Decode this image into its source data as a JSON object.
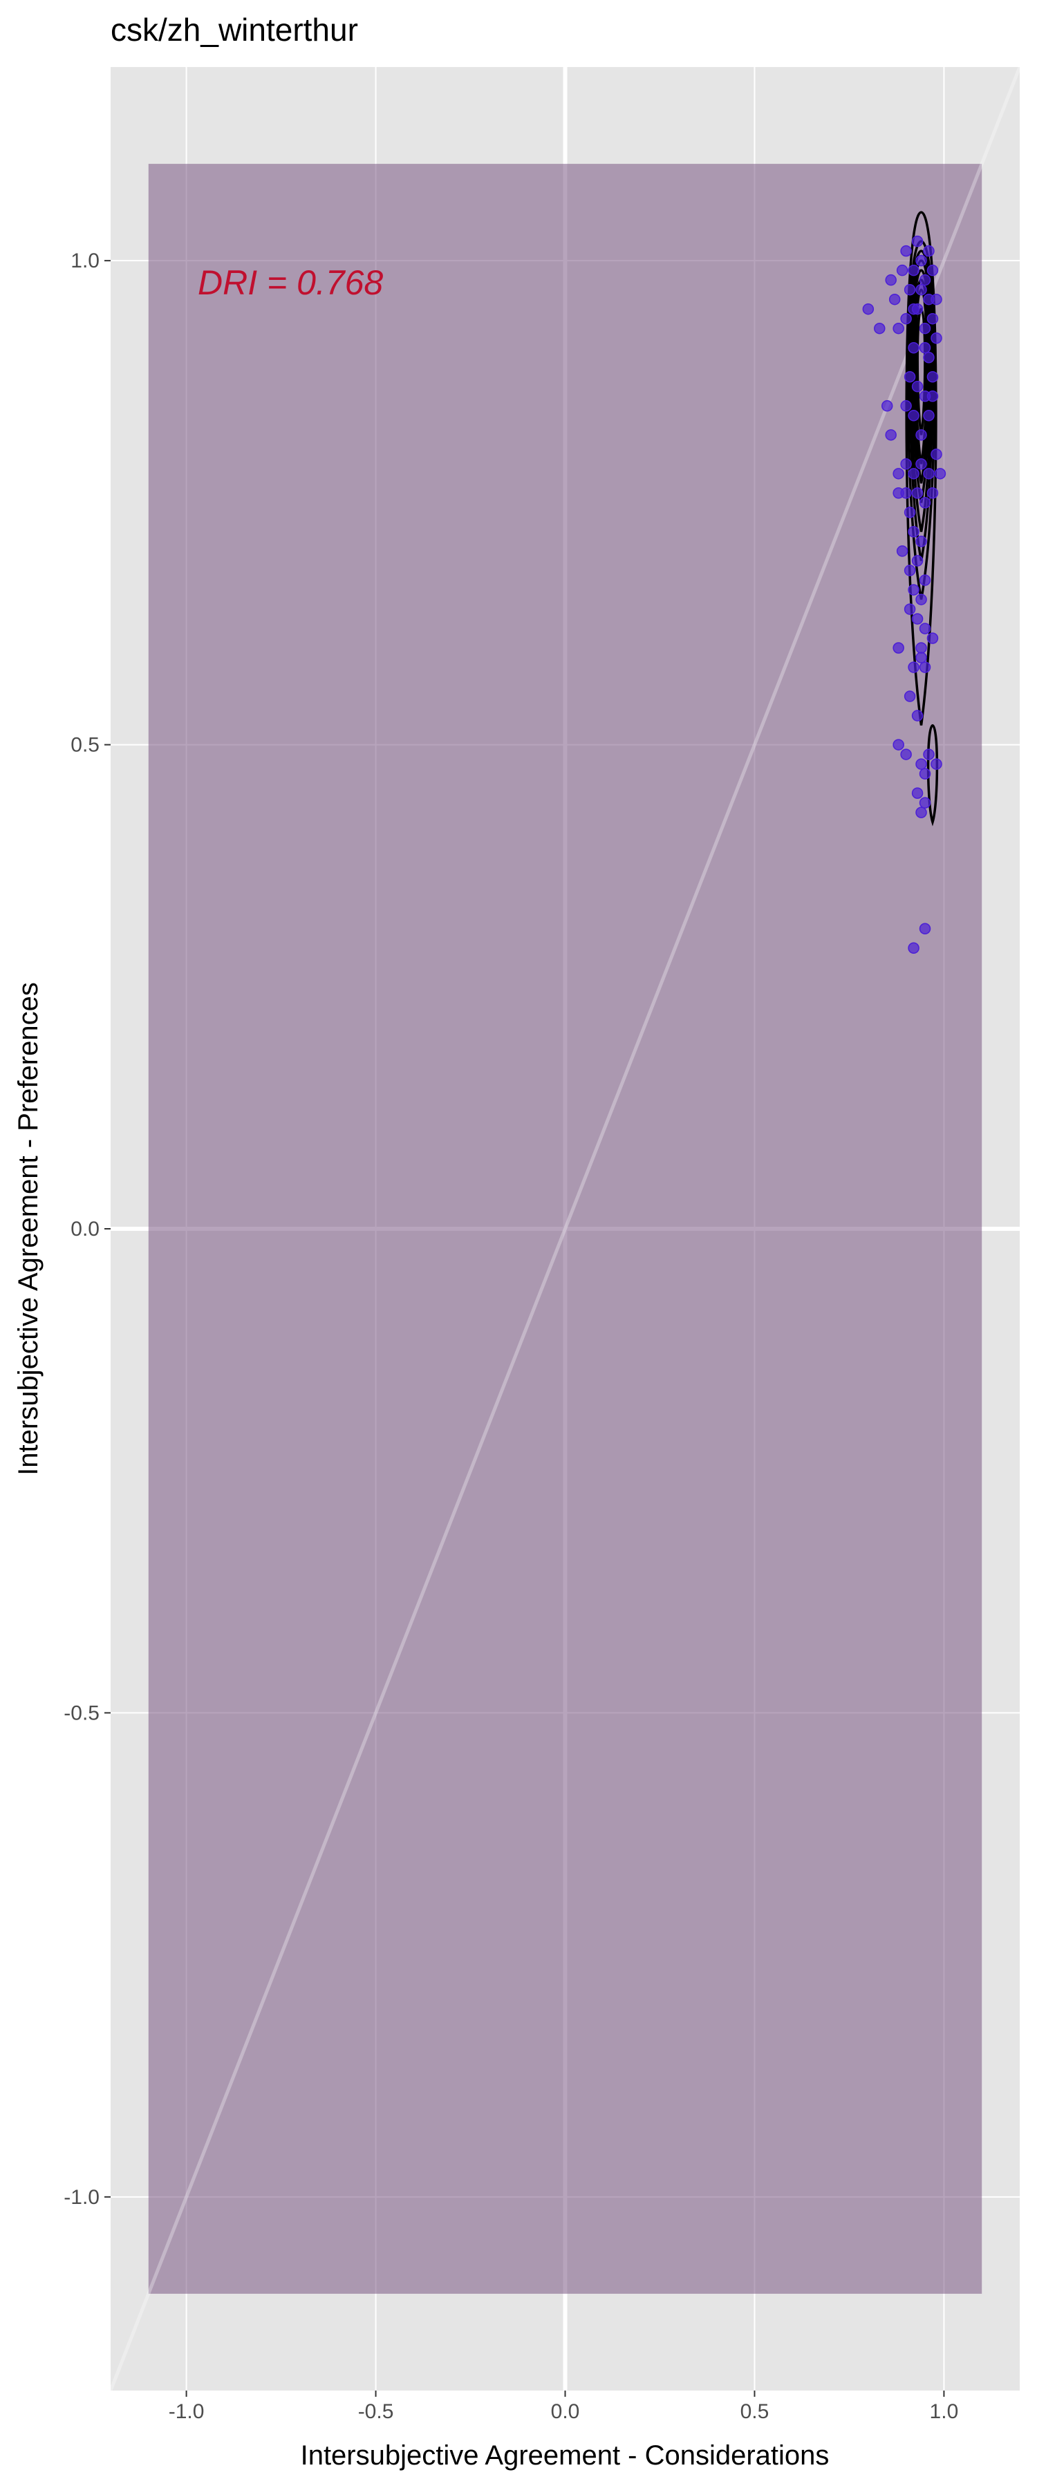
{
  "chart_data": {
    "type": "scatter",
    "title": "csk/zh_winterthur",
    "xlabel": "Intersubjective Agreement - Considerations",
    "ylabel": "Intersubjective Agreement - Preferences",
    "xlim": [
      -1.2,
      1.2
    ],
    "ylim": [
      -1.2,
      1.2
    ],
    "x_ticks": [
      -1.0,
      -0.5,
      0.0,
      0.5,
      1.0
    ],
    "x_tick_labels": [
      "-1.0",
      "-0.5",
      "0.0",
      "0.5",
      "1.0"
    ],
    "y_ticks": [
      -1.0,
      -0.5,
      0.0,
      0.5,
      1.0
    ],
    "y_tick_labels": [
      "-1.0",
      "-0.5",
      "0.0",
      "0.5",
      "1.0"
    ],
    "grid": true,
    "region": {
      "x": [
        -1.1,
        1.1
      ],
      "y": [
        -1.1,
        1.1
      ],
      "color": "#7b5a85"
    },
    "diagonal": {
      "from": [
        -1.2,
        -1.2
      ],
      "to": [
        1.2,
        1.2
      ]
    },
    "annotation": {
      "text": "DRI = 0.768",
      "x": -0.97,
      "y": 0.965,
      "color": "#c0102f"
    },
    "point_color": "#4b1fd6",
    "points": [
      [
        0.8,
        0.95
      ],
      [
        0.83,
        0.93
      ],
      [
        0.86,
        0.98
      ],
      [
        0.87,
        0.96
      ],
      [
        0.89,
        0.99
      ],
      [
        0.9,
        1.01
      ],
      [
        0.91,
        0.97
      ],
      [
        0.92,
        0.99
      ],
      [
        0.93,
        1.02
      ],
      [
        0.94,
        1.0
      ],
      [
        0.95,
        0.98
      ],
      [
        0.96,
        1.01
      ],
      [
        0.97,
        0.99
      ],
      [
        0.98,
        0.96
      ],
      [
        0.88,
        0.93
      ],
      [
        0.9,
        0.94
      ],
      [
        0.92,
        0.91
      ],
      [
        0.93,
        0.95
      ],
      [
        0.95,
        0.93
      ],
      [
        0.96,
        0.9
      ],
      [
        0.98,
        0.92
      ],
      [
        0.91,
        0.88
      ],
      [
        0.93,
        0.87
      ],
      [
        0.95,
        0.86
      ],
      [
        0.97,
        0.88
      ],
      [
        0.9,
        0.85
      ],
      [
        0.92,
        0.84
      ],
      [
        0.94,
        0.82
      ],
      [
        0.96,
        0.84
      ],
      [
        0.98,
        0.8
      ],
      [
        0.85,
        0.85
      ],
      [
        0.86,
        0.82
      ],
      [
        0.88,
        0.78
      ],
      [
        0.9,
        0.79
      ],
      [
        0.92,
        0.78
      ],
      [
        0.94,
        0.79
      ],
      [
        0.96,
        0.78
      ],
      [
        0.99,
        0.78
      ],
      [
        0.88,
        0.76
      ],
      [
        0.9,
        0.76
      ],
      [
        0.91,
        0.74
      ],
      [
        0.93,
        0.76
      ],
      [
        0.95,
        0.75
      ],
      [
        0.97,
        0.76
      ],
      [
        0.92,
        0.72
      ],
      [
        0.94,
        0.71
      ],
      [
        0.89,
        0.7
      ],
      [
        0.91,
        0.68
      ],
      [
        0.93,
        0.69
      ],
      [
        0.95,
        0.67
      ],
      [
        0.92,
        0.66
      ],
      [
        0.94,
        0.65
      ],
      [
        0.91,
        0.64
      ],
      [
        0.93,
        0.63
      ],
      [
        0.95,
        0.62
      ],
      [
        0.97,
        0.61
      ],
      [
        0.88,
        0.6
      ],
      [
        0.94,
        0.6
      ],
      [
        0.95,
        0.58
      ],
      [
        0.92,
        0.58
      ],
      [
        0.94,
        0.59
      ],
      [
        0.91,
        0.55
      ],
      [
        0.93,
        0.53
      ],
      [
        0.88,
        0.5
      ],
      [
        0.9,
        0.49
      ],
      [
        0.94,
        0.48
      ],
      [
        0.96,
        0.49
      ],
      [
        0.98,
        0.48
      ],
      [
        0.95,
        0.47
      ],
      [
        0.93,
        0.45
      ],
      [
        0.94,
        0.43
      ],
      [
        0.95,
        0.44
      ],
      [
        0.95,
        0.31
      ],
      [
        0.92,
        0.29
      ],
      [
        0.97,
        0.94
      ],
      [
        0.96,
        0.96
      ],
      [
        0.94,
        0.97
      ],
      [
        0.92,
        0.95
      ],
      [
        0.95,
        0.91
      ],
      [
        0.97,
        0.86
      ]
    ],
    "density_contours": [
      {
        "center": [
          0.94,
          0.9
        ],
        "rings": [
          {
            "rx": 0.01,
            "ry_top": 0.05,
            "ry_bottom": 0.08
          },
          {
            "rx": 0.015,
            "ry_top": 0.07,
            "ry_bottom": 0.11
          },
          {
            "rx": 0.019,
            "ry_top": 0.08,
            "ry_bottom": 0.13
          },
          {
            "rx": 0.023,
            "ry_top": 0.09,
            "ry_bottom": 0.15
          },
          {
            "rx": 0.027,
            "ry_top": 0.1,
            "ry_bottom": 0.18
          },
          {
            "rx": 0.031,
            "ry_top": 0.11,
            "ry_bottom": 0.21
          },
          {
            "rx": 0.036,
            "ry_top": 0.12,
            "ry_bottom": 0.25
          },
          {
            "rx": 0.04,
            "ry_top": 0.15,
            "ry_bottom": 0.38
          }
        ]
      },
      {
        "center": [
          0.97,
          0.47
        ],
        "rings": [
          {
            "rx": 0.012,
            "ry_top": 0.05,
            "ry_bottom": 0.05
          }
        ]
      }
    ]
  }
}
